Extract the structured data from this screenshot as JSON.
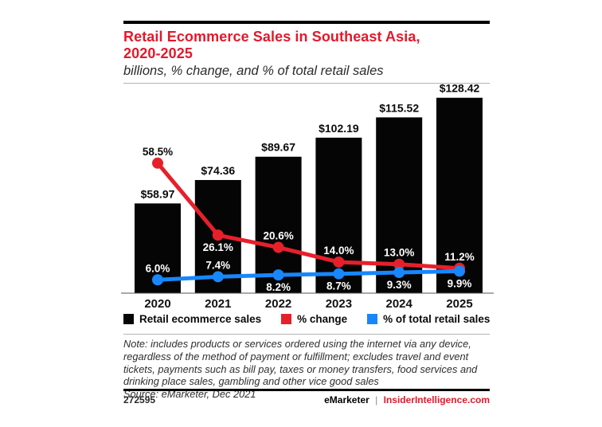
{
  "header": {
    "title_line1": "Retail Ecommerce Sales in Southeast Asia,",
    "title_line2": "2020-2025",
    "subtitle": "billions, % change, and % of total retail sales"
  },
  "chart_data": {
    "type": "bar",
    "title": "Retail Ecommerce Sales in Southeast Asia, 2020-2025",
    "subtitle": "billions, % change, and % of total retail sales",
    "categories": [
      "2020",
      "2021",
      "2022",
      "2023",
      "2024",
      "2025"
    ],
    "series": [
      {
        "name": "Retail ecommerce sales",
        "type": "bar",
        "unit": "US$ billions",
        "color": "#050505",
        "values": [
          58.97,
          74.36,
          89.67,
          102.19,
          115.52,
          128.42
        ],
        "labels": [
          "$58.97",
          "$74.36",
          "$89.67",
          "$102.19",
          "$115.52",
          "$128.42"
        ]
      },
      {
        "name": "% change",
        "type": "line",
        "unit": "%",
        "color": "#e6202b",
        "values": [
          58.5,
          26.1,
          20.6,
          14.0,
          13.0,
          11.2
        ],
        "labels": [
          "58.5%",
          "26.1%",
          "20.6%",
          "14.0%",
          "13.0%",
          "11.2%"
        ],
        "label_side": [
          "above",
          "below",
          "above",
          "above",
          "above",
          "above"
        ]
      },
      {
        "name": "% of total retail sales",
        "type": "line",
        "unit": "%",
        "color": "#1787fb",
        "values": [
          6.0,
          7.4,
          8.2,
          8.7,
          9.3,
          9.9
        ],
        "labels": [
          "6.0%",
          "7.4%",
          "8.2%",
          "8.7%",
          "9.3%",
          "9.9%"
        ],
        "label_side": [
          "above",
          "above",
          "below",
          "below",
          "below",
          "below"
        ]
      }
    ],
    "axes": {
      "x_label": "",
      "y_label": "",
      "gridlines": false,
      "y_axis_visible": false
    },
    "legend_position": "bottom"
  },
  "legend": {
    "items": [
      {
        "label": "Retail ecommerce sales",
        "color": "#050505"
      },
      {
        "label": "% change",
        "color": "#e6202b"
      },
      {
        "label": "% of total retail sales",
        "color": "#1787fb"
      }
    ]
  },
  "note": {
    "note_text": "Note: includes products or services ordered using the internet via any device, regardless of the method of payment or fulfillment; excludes travel and event tickets, payments such as bill pay, taxes or money transfers, food services and drinking place sales, gambling and other vice good sales",
    "source_text": "Source: eMarketer, Dec 2021"
  },
  "footer": {
    "chart_id": "272595",
    "brand": "eMarketer",
    "separator": "|",
    "site": "InsiderIntelligence.com"
  }
}
